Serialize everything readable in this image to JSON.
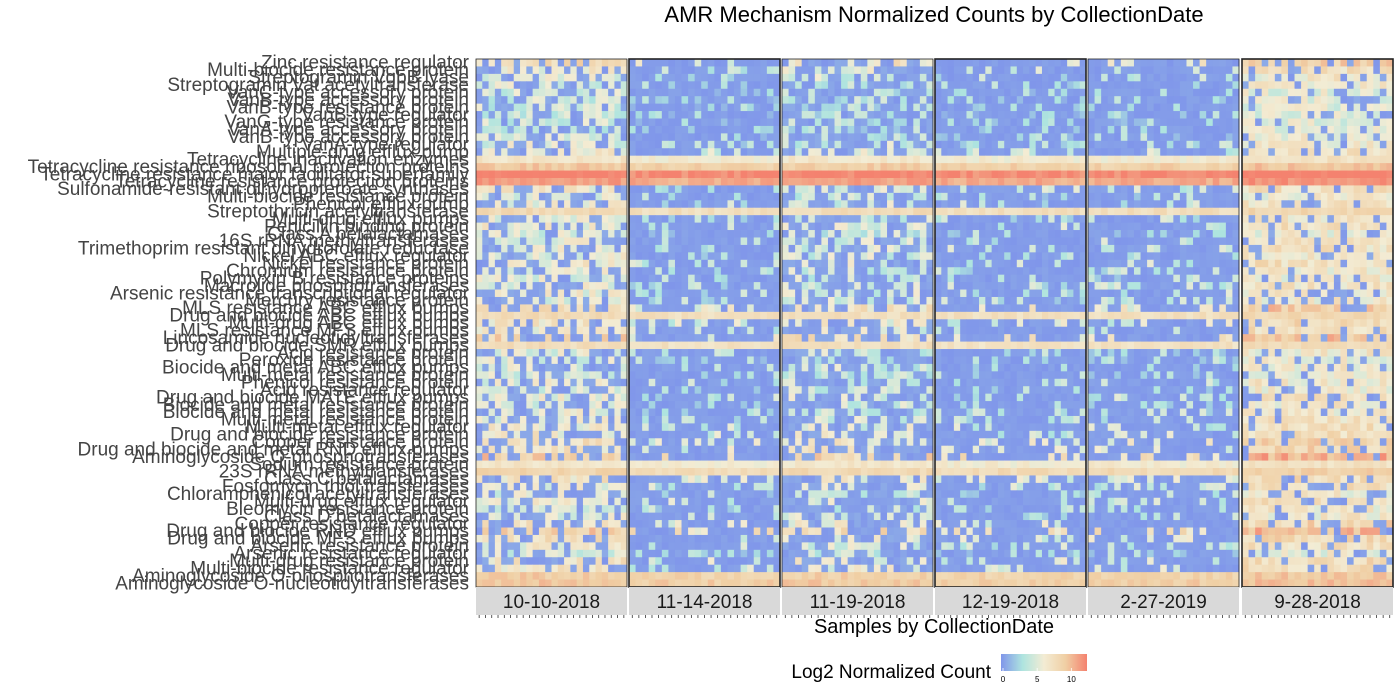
{
  "chart_data": {
    "type": "heatmap",
    "title": "AMR Mechanism Normalized Counts by CollectionDate",
    "xlabel": "Samples by CollectionDate",
    "panels": [
      "10-10-2018",
      "11-14-2018",
      "11-19-2018",
      "12-19-2018",
      "2-27-2019",
      "9-28-2018"
    ],
    "rows": [
      "Zinc resistance regulator",
      "Multi-biocide resistance protein",
      "Streptogramin VgbB lyase",
      "Streptogramin Vat acetyltransferase",
      "VanC-type accessory protein",
      "VanB-type accessory protein",
      "VanB-type resistance protein",
      "VanB-type regulator",
      "VanG-type resistance protein",
      "VanA-type accessory protein",
      "VanB-type accessory protein",
      "VanA-type regulator",
      "Multiple-drug efflux pump",
      "Tetracycline inactivation enzymes",
      "Tetracycline resistance ribosomal protection proteins",
      "Tetracycline resistance major facilitator superfamily",
      "Tetracycline resistance protection proteins",
      "Sulfonamide-resistant dihydropteroate synthases",
      "Multi-biocide resistance protein",
      "Phenicol efflux pump",
      "Streptothricin acetyltransferase",
      "Multi-drug efflux pumps",
      "Penicillin binding protein",
      "Class A betalactamases",
      "16S rRNA methyltransferases",
      "Trimethoprim resistant dihydrofolate reductase",
      "Nickel ABC efflux regulator",
      "Nickel resistance protein",
      "Chromium resistance protein",
      "Polymyxin B resistance proteins",
      "Macrolide phosphotransferases",
      "Arsenic resistance transcriptional regulator",
      "Mercury resistance protein",
      "MLS resistance ABC efflux pumps",
      "Drug and biocide ABC efflux pumps",
      "Multi-drug ABC efflux pumps",
      "MLS resistance MFS efflux pumps",
      "Lincosamide nucleotidyltransferases",
      "Drug and biocide SMR efflux pumps",
      "Acid resistance protein",
      "Peroxide resistance protein",
      "Biocide and metal ABC efflux pumps",
      "Multi-metal resistance protein",
      "Phenicol resistance protein",
      "Acid resistance regulator",
      "Drug and biocide MATE efflux pumps",
      "Biocide and metal resistance protein",
      "Biocide and metal resistance protein",
      "Multi-metal resistance protein",
      "Multi-metal efflux regulator",
      "Drug and biocide resistance protein",
      "Copper resistance protein",
      "Drug and biocide and metal RND efflux pumps",
      "Aminoglycoside O-phosphotransferases",
      "Sodium resistance protein",
      "23S rRNA methyltransferases",
      "Class C betalactamases",
      "Fosfomycin thiol transferases",
      "Chloramphenicol acetyltransferases",
      "Multi-drug efflux regulator",
      "Bleomycin resistance protein",
      "Class D betalactamases",
      "Copper resistance regulator",
      "Drug and biocide RND efflux pumps",
      "Drug and biocide MFS efflux pumps",
      "Arsenic resistance protein",
      "Arsenic resistance regulator",
      "Multi-drug resistance protein",
      "Multi-biocide resistance regulator",
      "Aminoglycoside O-phosphotransferases",
      "Aminoglycoside O-nucleotidyltransferases"
    ],
    "row_baseline_log2": [
      4.2,
      2.5,
      1.8,
      1.5,
      0.9,
      0.8,
      0.8,
      0.7,
      0.7,
      0.6,
      1.2,
      1.6,
      2.8,
      6.2,
      8.6,
      11.6,
      10.4,
      2.6,
      1.5,
      2.2,
      7.4,
      2.0,
      2.6,
      1.4,
      2.0,
      2.3,
      2.0,
      2.6,
      1.8,
      1.6,
      2.0,
      2.2,
      1.8,
      4.2,
      7.2,
      3.2,
      2.6,
      4.6,
      7.0,
      1.6,
      1.4,
      1.6,
      1.4,
      1.8,
      1.4,
      2.0,
      1.6,
      1.8,
      2.2,
      2.6,
      2.8,
      3.6,
      3.4,
      5.4,
      6.2,
      7.8,
      3.2,
      2.4,
      1.6,
      2.6,
      1.8,
      1.8,
      3.4,
      5.2,
      3.4,
      2.4,
      1.2,
      3.2,
      2.8,
      8.4,
      8.8
    ],
    "panel_level_log2": [
      2.2,
      0.0,
      1.2,
      0.1,
      0.2,
      3.4
    ],
    "panel_samples": [
      24,
      23,
      23,
      24,
      23,
      23
    ],
    "value_range": [
      0,
      12
    ],
    "legend": {
      "title": "Log2 Normalized Count",
      "ticks": [
        "0",
        "5",
        "10"
      ],
      "position": "bottom",
      "colors": [
        "#8096ea",
        "#aee4df",
        "#f3ecd4",
        "#f0cfa4",
        "#f4826f"
      ]
    },
    "grid": false
  }
}
